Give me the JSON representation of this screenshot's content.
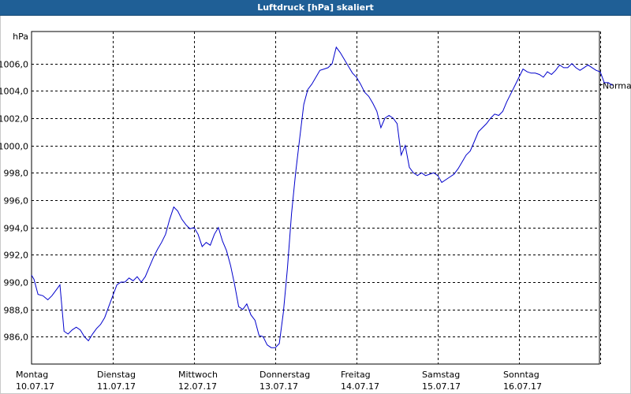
{
  "window": {
    "title": "Luftdruck [hPa] skaliert"
  },
  "chart_data": {
    "type": "line",
    "title": "Luftdruck [hPa] skaliert",
    "ylabel": "hPa",
    "ylim": [
      984.0,
      1008.0
    ],
    "y_ticks": [
      "986,0",
      "988,0",
      "990,0",
      "992,0",
      "994,0",
      "996,0",
      "998,0",
      "1000,0",
      "1002,0",
      "1004,0",
      "1006,0"
    ],
    "x_ticks": [
      {
        "day": "Montag",
        "date": "10.07.17"
      },
      {
        "day": "Dienstag",
        "date": "11.07.17"
      },
      {
        "day": "Mittwoch",
        "date": "12.07.17"
      },
      {
        "day": "Donnerstag",
        "date": "13.07.17"
      },
      {
        "day": "Freitag",
        "date": "14.07.17"
      },
      {
        "day": "Samstag",
        "date": "15.07.17"
      },
      {
        "day": "Sonntag",
        "date": "16.07.17"
      }
    ],
    "reference_line": {
      "label": "Normal",
      "value": 1004.5
    },
    "grid": true,
    "series_color": "#0000cc",
    "series": [
      {
        "x": [
          0,
          0.03,
          0.08,
          0.14,
          0.2,
          0.25,
          0.3,
          0.35,
          0.4,
          0.45,
          0.5,
          0.55,
          0.6,
          0.65,
          0.7,
          0.75,
          0.8,
          0.85,
          0.9,
          0.95,
          1.0,
          1.05,
          1.1,
          1.15,
          1.2,
          1.25,
          1.3,
          1.35,
          1.4,
          1.45,
          1.5,
          1.55,
          1.6,
          1.65,
          1.7,
          1.75,
          1.8,
          1.85,
          1.9,
          1.95,
          2.0,
          2.05,
          2.1,
          2.15,
          2.2,
          2.25,
          2.3,
          2.35,
          2.4,
          2.45,
          2.5,
          2.55,
          2.6,
          2.65,
          2.7,
          2.75,
          2.8,
          2.85,
          2.9,
          2.95,
          3.0,
          3.05,
          3.1,
          3.15,
          3.2,
          3.25,
          3.3,
          3.35,
          3.4,
          3.45,
          3.5,
          3.55,
          3.6,
          3.65,
          3.7,
          3.75,
          3.8,
          3.85,
          3.9,
          3.95,
          4.0,
          4.05,
          4.1,
          4.15,
          4.2,
          4.25,
          4.3,
          4.35,
          4.4,
          4.45,
          4.5,
          4.55,
          4.6,
          4.65,
          4.7,
          4.75,
          4.8,
          4.85,
          4.9,
          4.95,
          5.0,
          5.05,
          5.1,
          5.15,
          5.2,
          5.25,
          5.3,
          5.35,
          5.4,
          5.45,
          5.5,
          5.55,
          5.6,
          5.65,
          5.7,
          5.75,
          5.8,
          5.85,
          5.9,
          5.95,
          6.0,
          6.05,
          6.1,
          6.15,
          6.2,
          6.25,
          6.3,
          6.35,
          6.4,
          6.45,
          6.5,
          6.55,
          6.6,
          6.65,
          6.7,
          6.75,
          6.8,
          6.85,
          6.9,
          6.95,
          7.0,
          7.05,
          7.1,
          7.15
        ],
        "y": [
          990.5,
          990.2,
          989.1,
          989.0,
          988.7,
          989.0,
          989.4,
          989.8,
          986.4,
          986.2,
          986.5,
          986.7,
          986.5,
          986.0,
          985.7,
          986.2,
          986.6,
          986.9,
          987.4,
          988.2,
          989.0,
          989.8,
          990.0,
          990.0,
          990.3,
          990.1,
          990.4,
          990.0,
          990.4,
          991.1,
          991.8,
          992.4,
          992.9,
          993.5,
          994.6,
          995.5,
          995.2,
          994.6,
          994.2,
          993.9,
          994.0,
          993.5,
          992.6,
          992.9,
          992.7,
          993.5,
          994.0,
          993.0,
          992.3,
          991.2,
          989.8,
          988.2,
          988.0,
          988.4,
          987.6,
          987.2,
          986.1,
          986.0,
          985.4,
          985.2,
          985.2,
          985.5,
          987.8,
          991.0,
          995.0,
          998.0,
          1000.5,
          1003.0,
          1004.1,
          1004.5,
          1005.0,
          1005.5,
          1005.6,
          1005.7,
          1006.0,
          1007.2,
          1006.8,
          1006.3,
          1005.8,
          1005.3,
          1005.0,
          1004.5,
          1003.9,
          1003.6,
          1003.1,
          1002.5,
          1001.3,
          1002.0,
          1002.2,
          1002.0,
          1001.6,
          999.3,
          1000.0,
          998.4,
          998.0,
          997.8,
          998.0,
          997.8,
          997.9,
          998.0,
          997.8,
          997.3,
          997.5,
          997.7,
          997.9,
          998.3,
          998.8,
          999.3,
          999.6,
          1000.3,
          1001.0,
          1001.3,
          1001.6,
          1002.0,
          1002.3,
          1002.2,
          1002.5,
          1003.2,
          1003.8,
          1004.4,
          1005.0,
          1005.6,
          1005.4,
          1005.3,
          1005.3,
          1005.2,
          1005.0,
          1005.4,
          1005.2,
          1005.5,
          1005.9,
          1005.7,
          1005.7,
          1006.0,
          1005.7,
          1005.5,
          1005.7,
          1005.9,
          1005.7,
          1005.5,
          1005.4,
          1004.6,
          1004.6,
          1004.4
        ]
      }
    ]
  }
}
